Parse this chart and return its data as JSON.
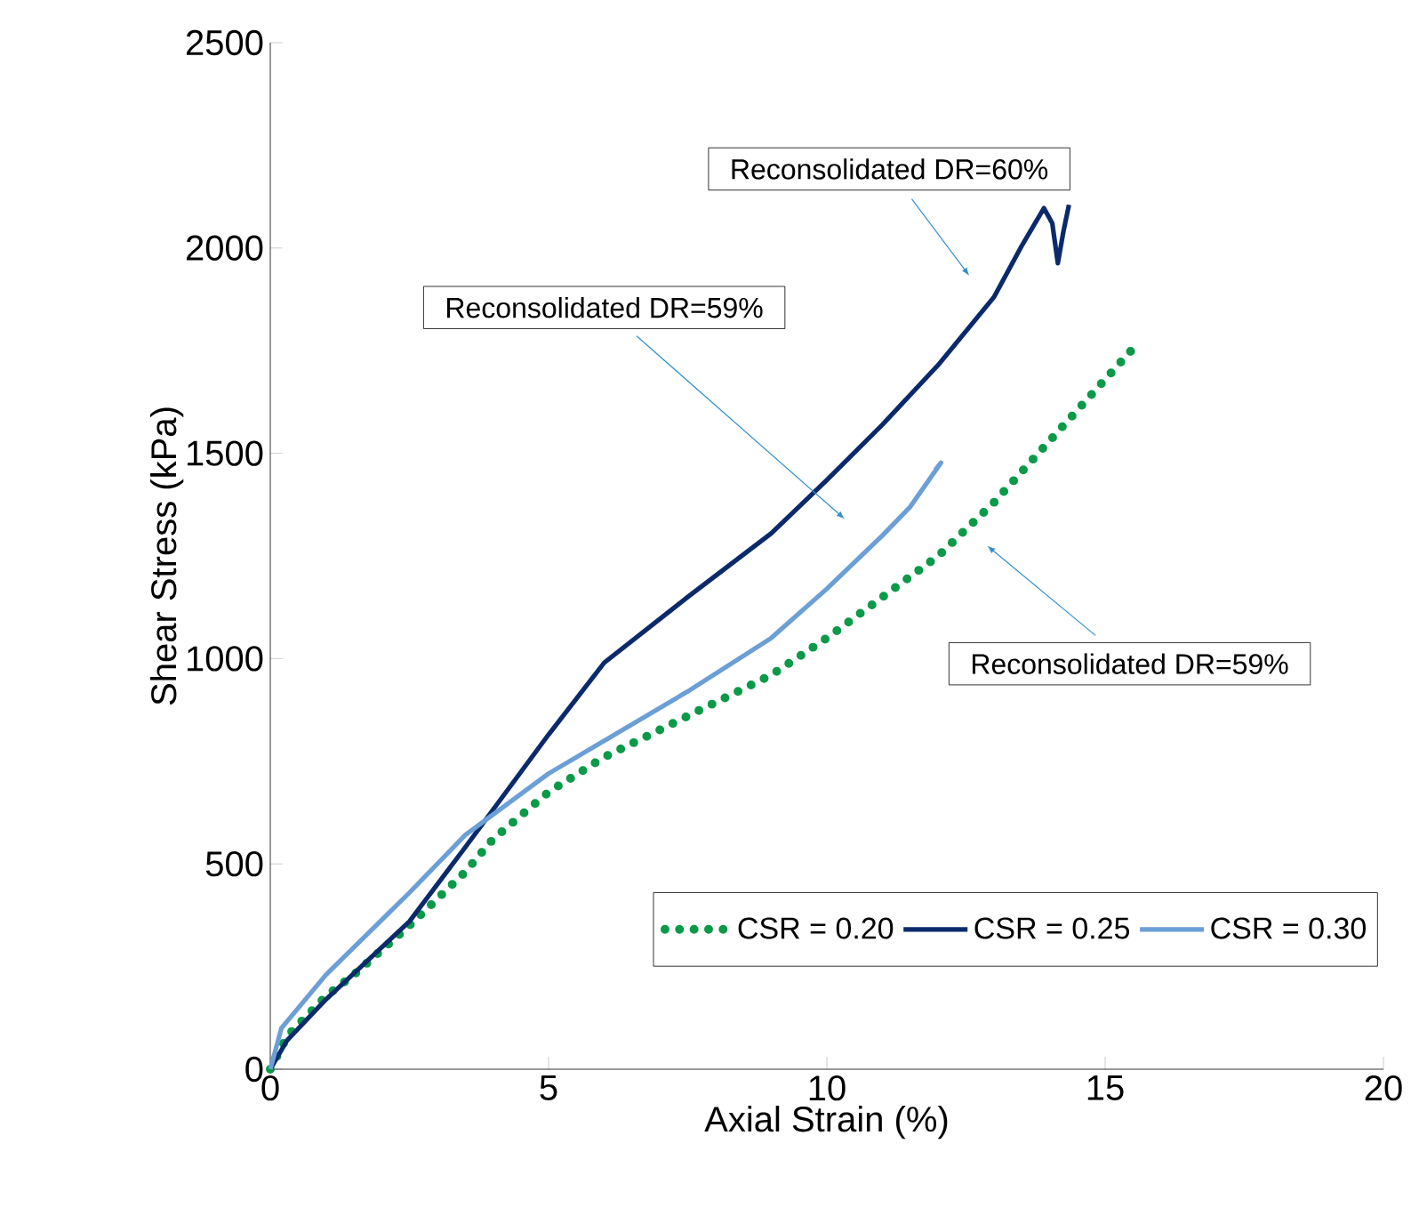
{
  "chart_data": {
    "type": "line",
    "xlabel": "Axial Strain (%)",
    "ylabel": "Shear Stress (kPa)",
    "xlim": [
      0,
      20
    ],
    "ylim": [
      0,
      2500
    ],
    "xticks": [
      0,
      5,
      10,
      15,
      20
    ],
    "yticks": [
      0,
      500,
      1000,
      1500,
      2000,
      2500
    ],
    "grid": false,
    "legend": "bottom right",
    "series": [
      {
        "name": "CSR = 0.20",
        "color": "#0a9a48",
        "line_style": "dotted",
        "x": [
          0,
          0.3,
          1,
          1.5,
          2.5,
          3.5,
          4,
          5,
          6,
          7.5,
          9,
          10,
          11,
          12,
          13,
          14,
          15,
          15.5
        ],
        "values": [
          0,
          80,
          178,
          230,
          350,
          480,
          560,
          675,
          760,
          860,
          960,
          1050,
          1150,
          1250,
          1380,
          1530,
          1680,
          1755
        ]
      },
      {
        "name": "CSR = 0.25",
        "color": "#0b2a6b",
        "line_style": "solid",
        "x": [
          0,
          0.3,
          1,
          2.5,
          3.5,
          5,
          6,
          7.5,
          9,
          10,
          11,
          12,
          13,
          13.5,
          13.9,
          14.05,
          14.15,
          14.25,
          14.35
        ],
        "values": [
          0,
          70,
          170,
          360,
          540,
          815,
          990,
          1150,
          1305,
          1435,
          1570,
          1715,
          1880,
          2005,
          2097,
          2060,
          1963,
          2040,
          2105
        ]
      },
      {
        "name": "CSR = 0.30",
        "color": "#6b9fd6",
        "line_style": "solid",
        "x": [
          0,
          0.2,
          1,
          2.5,
          3.5,
          5,
          6,
          7.5,
          9,
          10,
          11,
          11.5,
          12.05,
          11.95
        ],
        "values": [
          0,
          100,
          230,
          430,
          570,
          720,
          800,
          920,
          1050,
          1170,
          1300,
          1370,
          1477,
          1460
        ]
      }
    ],
    "annotations": [
      "Reconsolidated DR=60%",
      "Reconsolidated DR=59%",
      "Reconsolidated DR=59%"
    ]
  }
}
